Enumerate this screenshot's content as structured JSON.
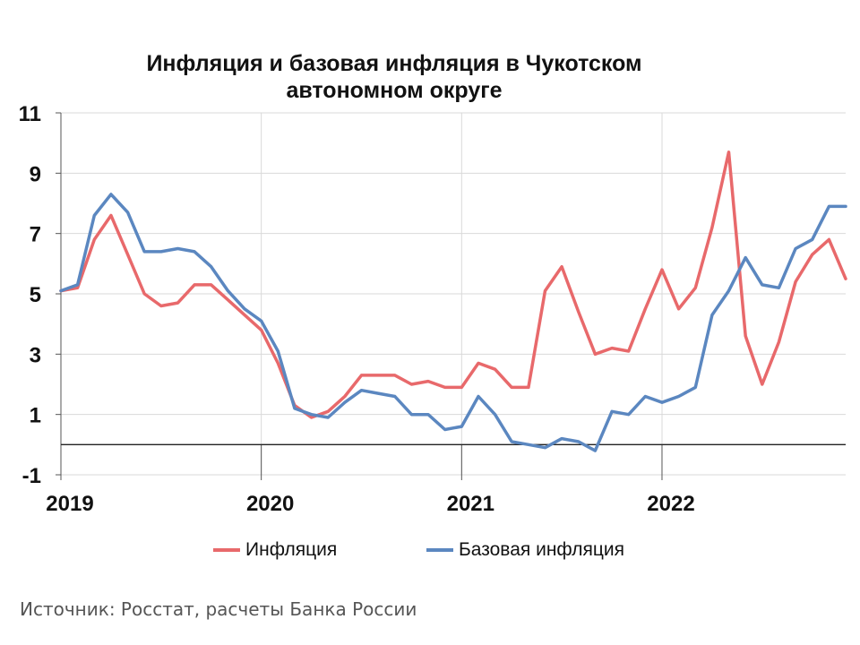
{
  "chart_data": {
    "type": "line",
    "title_lines": [
      "Инфляция и базовая инфляция в Чукотском",
      "автономном округе"
    ],
    "ylim": [
      -1,
      11
    ],
    "yticks": [
      11,
      9,
      7,
      5,
      3,
      1,
      -1
    ],
    "xlim": [
      "2019-01",
      "2022-12"
    ],
    "xticks": [
      {
        "label": "2019",
        "x": "2019-01"
      },
      {
        "label": "2020",
        "x": "2020-01"
      },
      {
        "label": "2021",
        "x": "2021-01"
      },
      {
        "label": "2022",
        "x": "2022-01"
      }
    ],
    "grid": true,
    "legend_position": "bottom",
    "x": [
      "2019-01",
      "2019-02",
      "2019-03",
      "2019-04",
      "2019-05",
      "2019-06",
      "2019-07",
      "2019-08",
      "2019-09",
      "2019-10",
      "2019-11",
      "2019-12",
      "2020-01",
      "2020-02",
      "2020-03",
      "2020-04",
      "2020-05",
      "2020-06",
      "2020-07",
      "2020-08",
      "2020-09",
      "2020-10",
      "2020-11",
      "2020-12",
      "2021-01",
      "2021-02",
      "2021-03",
      "2021-04",
      "2021-05",
      "2021-06",
      "2021-07",
      "2021-08",
      "2021-09",
      "2021-10",
      "2021-11",
      "2021-12",
      "2022-01",
      "2022-02",
      "2022-03",
      "2022-04",
      "2022-05",
      "2022-06",
      "2022-07",
      "2022-08",
      "2022-09",
      "2022-10",
      "2022-11",
      "2022-12"
    ],
    "series": [
      {
        "name": "Инфляция",
        "color": "#e8696b",
        "values": [
          5.1,
          5.2,
          6.8,
          7.6,
          6.3,
          5.0,
          4.6,
          4.7,
          5.3,
          5.3,
          4.8,
          4.3,
          3.8,
          2.7,
          1.3,
          0.9,
          1.1,
          1.6,
          2.3,
          2.3,
          2.3,
          2.0,
          2.1,
          1.9,
          1.9,
          2.7,
          2.5,
          1.9,
          1.9,
          5.1,
          5.9,
          4.4,
          3.0,
          3.2,
          3.1,
          4.5,
          5.8,
          4.5,
          5.2,
          7.2,
          9.7,
          3.6,
          2.0,
          3.4,
          5.4,
          6.3,
          6.8,
          5.5
        ]
      },
      {
        "name": "Базовая инфляция",
        "color": "#5b87c0",
        "values": [
          5.1,
          5.3,
          7.6,
          8.3,
          7.7,
          6.4,
          6.4,
          6.5,
          6.4,
          5.9,
          5.1,
          4.5,
          4.1,
          3.1,
          1.2,
          1.0,
          0.9,
          1.4,
          1.8,
          1.7,
          1.6,
          1.0,
          1.0,
          0.5,
          0.6,
          1.6,
          1.0,
          0.1,
          0.0,
          -0.1,
          0.2,
          0.1,
          -0.2,
          1.1,
          1.0,
          1.6,
          1.4,
          1.6,
          1.9,
          4.3,
          5.1,
          6.2,
          5.3,
          5.2,
          6.5,
          6.8,
          7.9,
          7.9
        ]
      }
    ]
  },
  "source": "Источник: Росстат, расчеты Банка России"
}
